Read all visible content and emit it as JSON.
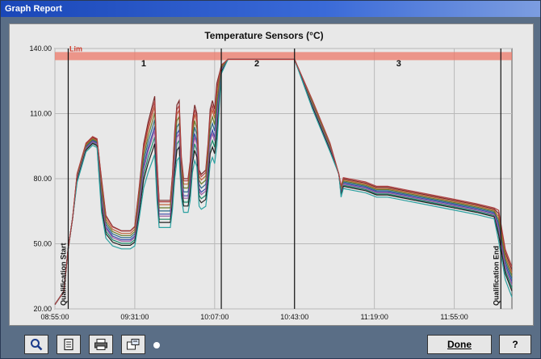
{
  "window": {
    "title": "Graph Report"
  },
  "toolbar": {
    "zoom_icon": "magnifier-icon",
    "report_icon": "document-icon",
    "print_icon": "printer-icon",
    "export_icon": "export-icon",
    "done_label": "Done",
    "help_label": "?"
  },
  "colors": {
    "plot_bg": "#e8e8e8",
    "limit_band": "#ee7a6a",
    "limit_text": "#d03a2a"
  },
  "chart_data": {
    "type": "line",
    "title": "Temperature Sensors (°C)",
    "xlabel": "",
    "ylabel": "",
    "y_ticks": [
      "140.00",
      "110.00",
      "80.00",
      "50.00",
      "20.00"
    ],
    "ylim": [
      20,
      140
    ],
    "x_ticks": [
      "08:55:00",
      "09:31:00",
      "10:07:00",
      "10:43:00",
      "11:19:00",
      "11:55:00"
    ],
    "x_tick_minutes": [
      0,
      36,
      72,
      108,
      144,
      180
    ],
    "xlim_minutes": [
      0,
      206
    ],
    "grid": true,
    "limit_label": "Lim",
    "limit_band": [
      135,
      138
    ],
    "markers": [
      {
        "label": "Qualification Start",
        "x_minutes": 6
      },
      {
        "label": "Qualification End",
        "x_minutes": 201
      }
    ],
    "phase_lines_minutes": [
      75,
      108
    ],
    "phases": [
      {
        "label": "1",
        "x_minutes": 40
      },
      {
        "label": "2",
        "x_minutes": 91
      },
      {
        "label": "3",
        "x_minutes": 155
      }
    ],
    "base_profile": [
      [
        0,
        22
      ],
      [
        4,
        28
      ],
      [
        6,
        48
      ],
      [
        8,
        62
      ],
      [
        10,
        82
      ],
      [
        14,
        96
      ],
      [
        17,
        99
      ],
      [
        19,
        98
      ],
      [
        21,
        80
      ],
      [
        23,
        63
      ],
      [
        26,
        58
      ],
      [
        30,
        56
      ],
      [
        34,
        56
      ],
      [
        36,
        58
      ],
      [
        38,
        76
      ],
      [
        40,
        96
      ],
      [
        42,
        106
      ],
      [
        44,
        114
      ],
      [
        45,
        118
      ],
      [
        46,
        88
      ],
      [
        47,
        70
      ],
      [
        49,
        70
      ],
      [
        52,
        70
      ],
      [
        53,
        82
      ],
      [
        54,
        102
      ],
      [
        55,
        114
      ],
      [
        56,
        116
      ],
      [
        57,
        90
      ],
      [
        58,
        80
      ],
      [
        60,
        80
      ],
      [
        61,
        88
      ],
      [
        62,
        106
      ],
      [
        63,
        114
      ],
      [
        64,
        110
      ],
      [
        65,
        84
      ],
      [
        66,
        82
      ],
      [
        68,
        84
      ],
      [
        69,
        96
      ],
      [
        70,
        112
      ],
      [
        71,
        116
      ],
      [
        72,
        112
      ],
      [
        73,
        124
      ],
      [
        75,
        132
      ],
      [
        78,
        135
      ],
      [
        90,
        135
      ],
      [
        100,
        135
      ],
      [
        108,
        135
      ],
      [
        116,
        116
      ],
      [
        124,
        96
      ],
      [
        128,
        82
      ],
      [
        129,
        76
      ],
      [
        130,
        80
      ],
      [
        135,
        79
      ],
      [
        140,
        78
      ],
      [
        145,
        76
      ],
      [
        150,
        76
      ],
      [
        160,
        74
      ],
      [
        170,
        72
      ],
      [
        180,
        70
      ],
      [
        190,
        68
      ],
      [
        198,
        66
      ],
      [
        200,
        64
      ],
      [
        203,
        46
      ],
      [
        206,
        38
      ]
    ],
    "series": [
      {
        "name": "",
        "color": "#7a2a2a",
        "offset": 0,
        "spread": 0.0
      },
      {
        "name": "",
        "color": "#c0603a",
        "offset": -1,
        "spread": 0.15
      },
      {
        "name": "",
        "color": "#2a6a8a",
        "offset": -3,
        "spread": 0.35
      },
      {
        "name": "",
        "color": "#3a4aa8",
        "offset": -4,
        "spread": 0.45
      },
      {
        "name": "",
        "color": "#1a8a6a",
        "offset": -6,
        "spread": 0.6
      },
      {
        "name": "",
        "color": "#6a7a2a",
        "offset": -2,
        "spread": 0.25
      },
      {
        "name": "",
        "color": "#9a5aa0",
        "offset": -5,
        "spread": 0.5
      },
      {
        "name": "",
        "color": "#202020",
        "offset": -7,
        "spread": 0.7
      },
      {
        "name": "",
        "color": "#2aa0a0",
        "offset": -9,
        "spread": 0.85
      },
      {
        "name": "",
        "color": "#b04040",
        "offset": 1,
        "spread": 0.1
      }
    ]
  }
}
